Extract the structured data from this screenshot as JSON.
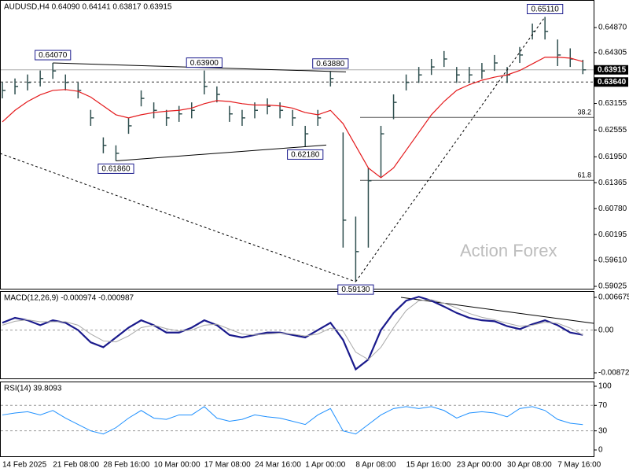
{
  "chart_data": [
    {
      "type": "ohlc",
      "title": "AUDUSD,H4 0.64090 0.64141 0.63817 0.63915",
      "categories": [
        "14 Feb 2025",
        null,
        null,
        null,
        "21 Feb 08:00",
        null,
        null,
        null,
        "28 Feb 16:00",
        null,
        null,
        null,
        "10 Mar 00:00",
        null,
        null,
        null,
        "17 Mar 08:00",
        null,
        null,
        null,
        "24 Mar 16:00",
        null,
        null,
        null,
        "1 Apr 00:00",
        null,
        null,
        null,
        "8 Apr 08:00",
        null,
        null,
        null,
        "15 Apr 16:00",
        null,
        null,
        null,
        "23 Apr 00:00",
        null,
        null,
        null,
        "30 Apr 08:00",
        null,
        null,
        null,
        "7 May 16:00",
        null,
        null
      ],
      "high": [
        0.6363,
        0.6372,
        0.6381,
        0.639,
        0.6407,
        0.6381,
        0.6363,
        0.6301,
        0.6239,
        0.6221,
        0.6283,
        0.6345,
        0.6318,
        0.6301,
        0.631,
        0.6318,
        0.639,
        0.6354,
        0.631,
        0.6301,
        0.6318,
        0.6327,
        0.6318,
        0.6301,
        0.6265,
        0.6301,
        0.6388,
        0.625,
        0.606,
        0.617,
        0.6265,
        0.6336,
        0.6381,
        0.6398,
        0.6416,
        0.6434,
        0.6398,
        0.6398,
        0.6407,
        0.6425,
        0.6398,
        0.6443,
        0.6496,
        0.6511,
        0.646,
        0.644,
        0.64141
      ],
      "low": [
        0.6327,
        0.6336,
        0.6345,
        0.6354,
        0.6371,
        0.6345,
        0.6327,
        0.6265,
        0.6203,
        0.6186,
        0.6247,
        0.6309,
        0.6282,
        0.6265,
        0.6274,
        0.6282,
        0.6336,
        0.6318,
        0.6274,
        0.6265,
        0.6282,
        0.6291,
        0.6282,
        0.6265,
        0.6218,
        0.6265,
        0.6354,
        0.599,
        0.5913,
        0.599,
        0.615,
        0.628,
        0.6345,
        0.6362,
        0.638,
        0.6398,
        0.6362,
        0.6362,
        0.6371,
        0.6389,
        0.6362,
        0.6407,
        0.646,
        0.646,
        0.64,
        0.6398,
        0.63817
      ],
      "close": [
        0.6345,
        0.6354,
        0.6363,
        0.6372,
        0.6389,
        0.6363,
        0.6345,
        0.6283,
        0.6221,
        0.6203,
        0.6265,
        0.6327,
        0.63,
        0.6283,
        0.6292,
        0.63,
        0.6354,
        0.6336,
        0.6292,
        0.6283,
        0.63,
        0.6309,
        0.63,
        0.6283,
        0.6247,
        0.6283,
        0.6372,
        0.6052,
        0.5981,
        0.6141,
        0.6247,
        0.6318,
        0.6363,
        0.638,
        0.6398,
        0.6416,
        0.638,
        0.638,
        0.6389,
        0.6407,
        0.638,
        0.6425,
        0.6478,
        0.6478,
        0.6425,
        0.6416,
        0.63915
      ],
      "color": "#2f4f4f",
      "overlay": {
        "color": "#e41a1c",
        "values": [
          0.6274,
          0.63,
          0.632,
          0.6335,
          0.6345,
          0.6347,
          0.6343,
          0.633,
          0.631,
          0.629,
          0.6283,
          0.629,
          0.6295,
          0.6298,
          0.63,
          0.6305,
          0.6315,
          0.6322,
          0.632,
          0.6315,
          0.6312,
          0.6312,
          0.631,
          0.6305,
          0.6295,
          0.629,
          0.63,
          0.627,
          0.622,
          0.617,
          0.6148,
          0.617,
          0.621,
          0.625,
          0.629,
          0.632,
          0.6345,
          0.6358,
          0.6368,
          0.6375,
          0.638,
          0.639,
          0.6405,
          0.642,
          0.642,
          0.6418,
          0.641
        ]
      },
      "ylim": [
        0.58972,
        0.65492
      ],
      "yticks": [
        {
          "value": 0.6487,
          "label": "0.64870"
        },
        {
          "value": 0.64305,
          "label": "0.64305"
        },
        {
          "value": 0.63155,
          "label": "0.63155"
        },
        {
          "value": 0.62555,
          "label": "0.62555"
        },
        {
          "value": 0.6195,
          "label": "0.61950"
        },
        {
          "value": 0.61365,
          "label": "0.61365"
        },
        {
          "value": 0.6078,
          "label": "0.60780"
        },
        {
          "value": 0.60195,
          "label": "0.60195"
        },
        {
          "value": 0.5961,
          "label": "0.59610"
        },
        {
          "value": 0.59025,
          "label": "0.59025"
        }
      ],
      "current": {
        "value": 0.63915,
        "label": "0.63915"
      },
      "level": {
        "value": 0.6364,
        "label": "0.63640"
      },
      "annotations": [
        {
          "index": 4,
          "value": 0.6407,
          "label": "0.64070"
        },
        {
          "index": 16,
          "value": 0.639,
          "label": "0.63900"
        },
        {
          "index": 26,
          "value": 0.6388,
          "label": "0.63880"
        },
        {
          "index": 24,
          "value": 0.6218,
          "label": "0.62180"
        },
        {
          "index": 9,
          "value": 0.6186,
          "label": "0.61860"
        },
        {
          "index": 28,
          "value": 0.5913,
          "label": "0.59130"
        },
        {
          "index": 43,
          "value": 0.6511,
          "label": "0.65110"
        }
      ],
      "fib": [
        {
          "ratio": 38.2,
          "level": 0.6284
        },
        {
          "ratio": 61.8,
          "level": 0.6142
        }
      ],
      "watermark": "Action Forex"
    },
    {
      "type": "line",
      "title": "MACD(12,26,9) -0.000974 -0.000987",
      "series": [
        {
          "color": "#1a1a8c",
          "width": 2.2,
          "values": [
            0.0015,
            0.0025,
            0.002,
            0.001,
            0.002,
            0.0015,
            0,
            -0.0025,
            -0.0035,
            -0.0015,
            0.0005,
            0.002,
            0.001,
            -0.0005,
            -0.0005,
            0.0005,
            0.002,
            0.001,
            -0.001,
            -0.0015,
            -0.001,
            -0.0005,
            -0.0005,
            -0.001,
            -0.0015,
            0,
            0.0015,
            -0.002,
            -0.008,
            -0.006,
            0,
            0.0035,
            0.006,
            0.0068,
            0.006,
            0.0048,
            0.0035,
            0.0025,
            0.002,
            0.0018,
            0.0008,
            0.0002,
            0.0012,
            0.002,
            0.001,
            -0.0005,
            -0.000974
          ]
        },
        {
          "color": "#a9a9a9",
          "width": 1,
          "values": [
            0.001,
            0.0018,
            0.0021,
            0.0017,
            0.0017,
            0.0017,
            0.001,
            -0.0008,
            -0.0022,
            -0.0024,
            -0.0012,
            0.0005,
            0.001,
            0.0003,
            -0.0002,
            0,
            0.001,
            0.0012,
            0.0002,
            -0.0008,
            -0.001,
            -0.0008,
            -0.0006,
            -0.0008,
            -0.0012,
            -0.0008,
            0.0004,
            -0.0002,
            -0.0045,
            -0.006,
            -0.0035,
            0.0005,
            0.004,
            0.006,
            0.0062,
            0.0055,
            0.0045,
            0.0034,
            0.0026,
            0.0021,
            0.0014,
            0.0008,
            0.001,
            0.0016,
            0.0014,
            0.0004,
            -0.000987
          ]
        }
      ],
      "ylim": [
        -0.00985,
        0.00796
      ],
      "yticks": [
        0.006675,
        {
          "value": 0,
          "label": "0.00"
        },
        -0.008724
      ],
      "levels": [
        0
      ]
    },
    {
      "type": "line",
      "title": "RSI(14) 39.8093",
      "series": [
        {
          "color": "#1e90ff",
          "width": 1,
          "values": [
            55,
            58,
            60,
            55,
            62,
            50,
            40,
            30,
            25,
            35,
            50,
            62,
            50,
            48,
            55,
            55,
            68,
            50,
            45,
            48,
            55,
            52,
            50,
            45,
            40,
            55,
            65,
            30,
            25,
            40,
            55,
            65,
            68,
            65,
            68,
            62,
            50,
            58,
            60,
            58,
            52,
            65,
            68,
            62,
            48,
            42,
            39.8093
          ]
        }
      ],
      "ylim": [
        -9.9,
        107.4
      ],
      "yticks": [
        100,
        70,
        30,
        0
      ],
      "levels": [
        70,
        30
      ]
    }
  ]
}
